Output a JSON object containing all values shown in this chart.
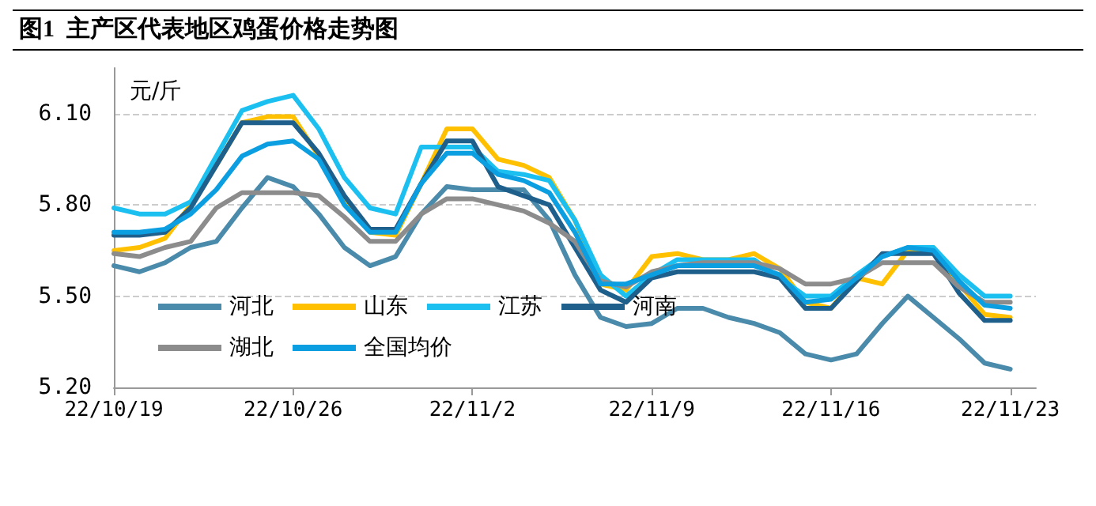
{
  "chart_data": {
    "type": "line",
    "title": "图1  主产区代表地区鸡蛋价格走势图",
    "ylabel": "元/斤",
    "x": [
      "--10-19",
      "--10-20",
      "--10-21",
      "--10-22",
      "--10-23",
      "--10-24",
      "--10-25",
      "--10-26",
      "--10-27",
      "--10-28",
      "--10-29",
      "--10-30",
      "--10-31",
      "--11-01",
      "--11-02",
      "--11-03",
      "--11-04",
      "--11-05",
      "--11-06",
      "--11-07",
      "--11-08",
      "--11-09",
      "--11-10",
      "--11-11",
      "--11-12",
      "--11-13",
      "--11-14",
      "--11-15",
      "--11-16",
      "--11-17",
      "--11-18",
      "--11-19",
      "--11-20",
      "--11-21",
      "--11-22",
      "--11-23"
    ],
    "series": [
      {
        "name": "河北",
        "color": "#4a8aaa",
        "values": [
          5.6,
          5.58,
          5.61,
          5.66,
          5.68,
          5.79,
          5.89,
          5.86,
          5.77,
          5.66,
          5.6,
          5.63,
          5.77,
          5.86,
          5.85,
          5.85,
          5.85,
          5.75,
          5.57,
          5.43,
          5.4,
          5.41,
          5.46,
          5.46,
          5.43,
          5.41,
          5.38,
          5.31,
          5.29,
          5.31,
          5.41,
          5.5,
          5.43,
          5.36,
          5.28,
          5.26
        ]
      },
      {
        "name": "山东",
        "color": "#ffc000",
        "values": [
          5.65,
          5.66,
          5.69,
          5.8,
          5.93,
          6.07,
          6.09,
          6.09,
          5.96,
          5.82,
          5.71,
          5.7,
          5.87,
          6.05,
          6.05,
          5.95,
          5.93,
          5.89,
          5.75,
          5.54,
          5.52,
          5.63,
          5.64,
          5.62,
          5.62,
          5.64,
          5.59,
          5.48,
          5.46,
          5.56,
          5.54,
          5.65,
          5.66,
          5.54,
          5.44,
          5.43
        ]
      },
      {
        "name": "江苏",
        "color": "#1cc0f0",
        "values": [
          5.79,
          5.77,
          5.77,
          5.81,
          5.96,
          6.11,
          6.14,
          6.16,
          6.05,
          5.89,
          5.79,
          5.77,
          5.99,
          5.99,
          5.99,
          5.91,
          5.9,
          5.88,
          5.75,
          5.57,
          5.5,
          5.57,
          5.62,
          5.62,
          5.62,
          5.62,
          5.56,
          5.5,
          5.5,
          5.57,
          5.63,
          5.66,
          5.66,
          5.57,
          5.5,
          5.5
        ]
      },
      {
        "name": "河南",
        "color": "#1f5f8c",
        "values": [
          5.7,
          5.7,
          5.71,
          5.79,
          5.93,
          6.07,
          6.07,
          6.07,
          5.97,
          5.83,
          5.72,
          5.72,
          5.87,
          6.01,
          6.01,
          5.86,
          5.83,
          5.8,
          5.66,
          5.52,
          5.48,
          5.56,
          5.58,
          5.58,
          5.58,
          5.58,
          5.56,
          5.46,
          5.46,
          5.55,
          5.64,
          5.64,
          5.64,
          5.51,
          5.42,
          5.42
        ]
      },
      {
        "name": "湖北",
        "color": "#8c8c8c",
        "values": [
          5.64,
          5.63,
          5.66,
          5.68,
          5.79,
          5.84,
          5.84,
          5.84,
          5.83,
          5.76,
          5.68,
          5.68,
          5.77,
          5.82,
          5.82,
          5.8,
          5.78,
          5.74,
          5.68,
          5.55,
          5.53,
          5.58,
          5.6,
          5.61,
          5.61,
          5.61,
          5.59,
          5.54,
          5.54,
          5.56,
          5.61,
          5.61,
          5.61,
          5.53,
          5.48,
          5.48
        ]
      },
      {
        "name": "全国均价",
        "color": "#0b9ee0",
        "values": [
          5.71,
          5.71,
          5.72,
          5.77,
          5.85,
          5.96,
          6.0,
          6.01,
          5.95,
          5.8,
          5.71,
          5.71,
          5.87,
          5.97,
          5.97,
          5.9,
          5.88,
          5.84,
          5.71,
          5.54,
          5.54,
          5.57,
          5.6,
          5.6,
          5.6,
          5.6,
          5.57,
          5.48,
          5.49,
          5.56,
          5.63,
          5.66,
          5.65,
          5.55,
          5.47,
          5.46
        ]
      }
    ],
    "xlim": [
      "--10-19",
      "--11-24"
    ],
    "xticks": [
      {
        "value": "--10-19",
        "label": "22/10/19"
      },
      {
        "value": "--10-26",
        "label": "22/10/26"
      },
      {
        "value": "--11-02",
        "label": "22/11/2"
      },
      {
        "value": "--11-09",
        "label": "22/11/9"
      },
      {
        "value": "--11-16",
        "label": "22/11/16"
      },
      {
        "value": "--11-23",
        "label": "22/11/23"
      }
    ],
    "ylim": [
      5.2,
      6.25
    ],
    "yticks": [
      {
        "value": 5.2,
        "label": "5.20"
      },
      {
        "value": 5.5,
        "label": "5.50"
      },
      {
        "value": 5.8,
        "label": "5.80"
      },
      {
        "value": 6.1,
        "label": "6.10"
      }
    ],
    "grid": "y",
    "legend": "bottom left",
    "marker": "none",
    "line_style": "solid"
  }
}
